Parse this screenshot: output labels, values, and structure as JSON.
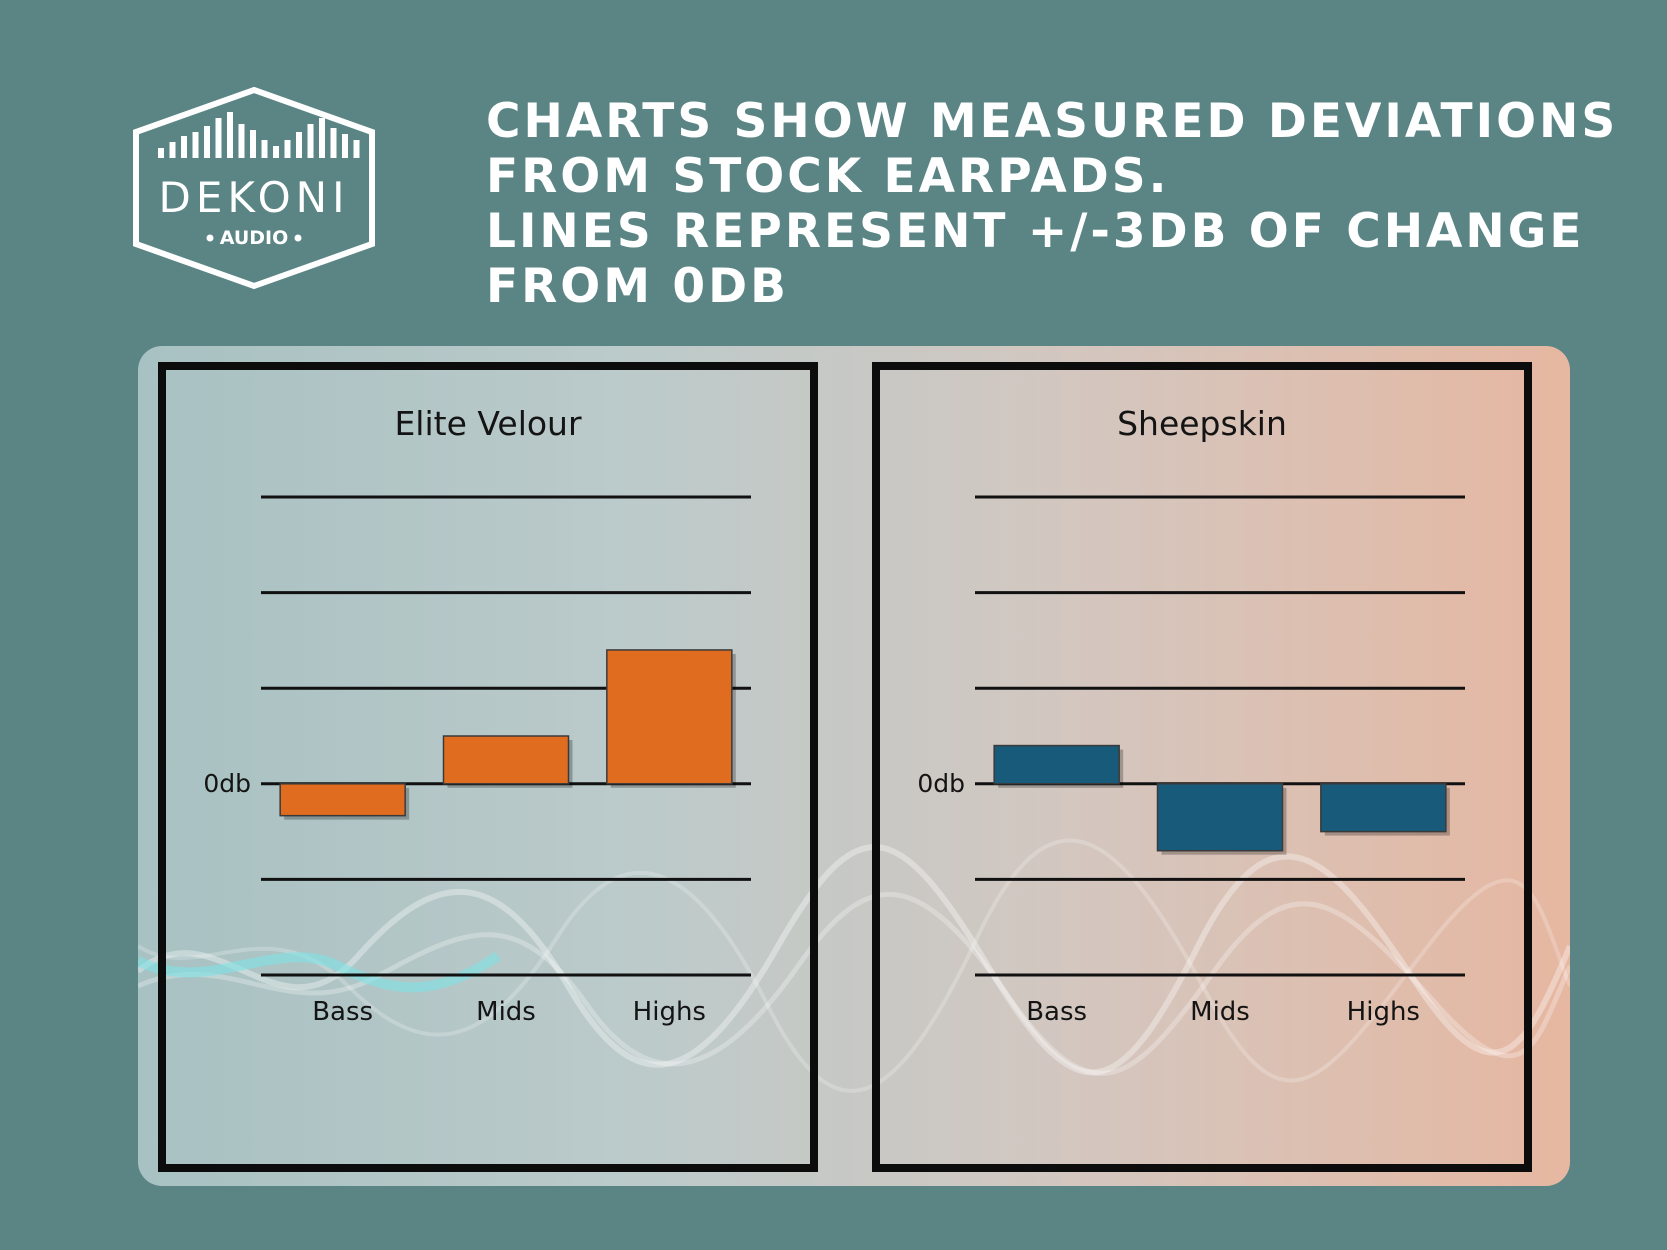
{
  "logo": {
    "brand": "DEKONI",
    "sub": "AUDIO",
    "icon": "equalizer-bars-icon"
  },
  "headline": {
    "lines": [
      "Charts show measured deviations",
      "from stock earpads.",
      "Lines represent +/-3db of change",
      "from 0db"
    ]
  },
  "colors": {
    "background": "#5a8584",
    "elite_bar": "#e06d1f",
    "sheepskin_bar": "#175a7a",
    "text": "#ffffff"
  },
  "chart_data": [
    {
      "type": "bar",
      "title": "Elite Velour",
      "categories": [
        "Bass",
        "Mids",
        "Highs"
      ],
      "values": [
        -1,
        1.5,
        4.2
      ],
      "ylim": [
        -6,
        9
      ],
      "gridlines": [
        -6,
        -3,
        0,
        3,
        6,
        9
      ],
      "zero_label": "0db",
      "bar_color": "#e06d1f",
      "grid": true
    },
    {
      "type": "bar",
      "title": "Sheepskin",
      "categories": [
        "Bass",
        "Mids",
        "Highs"
      ],
      "values": [
        1.2,
        -2.1,
        -1.5
      ],
      "ylim": [
        -6,
        9
      ],
      "gridlines": [
        -6,
        -3,
        0,
        3,
        6,
        9
      ],
      "zero_label": "0db",
      "bar_color": "#175a7a",
      "grid": true
    }
  ]
}
